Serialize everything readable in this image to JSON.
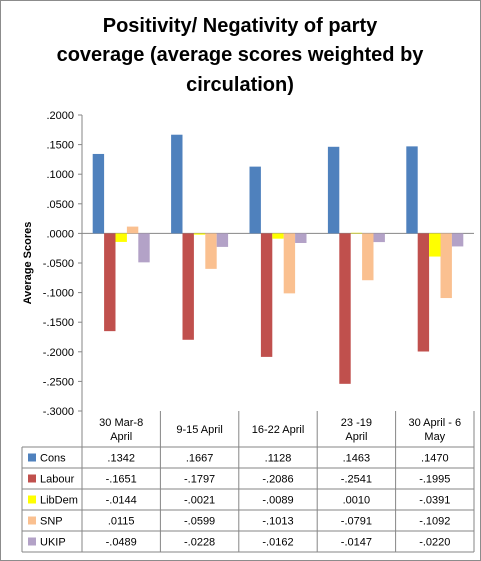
{
  "chart_data": {
    "type": "bar",
    "title_lines": [
      "Positivity/ Negativity of party",
      "coverage (average scores weighted by",
      "circulation)"
    ],
    "ylabel": "Average Scores",
    "ylim": [
      -0.3,
      0.2
    ],
    "ytick_labels": [
      ".2000",
      ".1500",
      ".1000",
      ".0500",
      ".0000",
      "-.0500",
      "-.1000",
      "-.1500",
      "-.2000",
      "-.2500",
      "-.3000"
    ],
    "grid": false,
    "legend": "data table below chart",
    "categories": [
      [
        "30 Mar-8",
        "April"
      ],
      [
        "9-15 April"
      ],
      [
        "16-22 April"
      ],
      [
        "23 -19",
        "April"
      ],
      [
        "30 April - 6",
        "May"
      ]
    ],
    "series": [
      {
        "name": "Cons",
        "color": "#4f81bd",
        "values": [
          0.1342,
          0.1667,
          0.1128,
          0.1463,
          0.147
        ],
        "labels": [
          ".1342",
          ".1667",
          ".1128",
          ".1463",
          ".1470"
        ]
      },
      {
        "name": "Labour",
        "color": "#c0504d",
        "values": [
          -0.1651,
          -0.1797,
          -0.2086,
          -0.2541,
          -0.1995
        ],
        "labels": [
          "-.1651",
          "-.1797",
          "-.2086",
          "-.2541",
          "-.1995"
        ]
      },
      {
        "name": "LibDem",
        "color": "#ffff00",
        "values": [
          -0.0144,
          -0.0021,
          -0.0089,
          0.001,
          -0.0391
        ],
        "labels": [
          "-.0144",
          "-.0021",
          "-.0089",
          ".0010",
          "-.0391"
        ]
      },
      {
        "name": "SNP",
        "color": "#fac090",
        "values": [
          0.0115,
          -0.0599,
          -0.1013,
          -0.0791,
          -0.1092
        ],
        "labels": [
          ".0115",
          "-.0599",
          "-.1013",
          "-.0791",
          "-.1092"
        ]
      },
      {
        "name": "UKIP",
        "color": "#b3a2c7",
        "values": [
          -0.0489,
          -0.0228,
          -0.0162,
          -0.0147,
          -0.022
        ],
        "labels": [
          "-.0489",
          "-.0228",
          "-.0162",
          "-.0147",
          "-.0220"
        ]
      }
    ]
  }
}
